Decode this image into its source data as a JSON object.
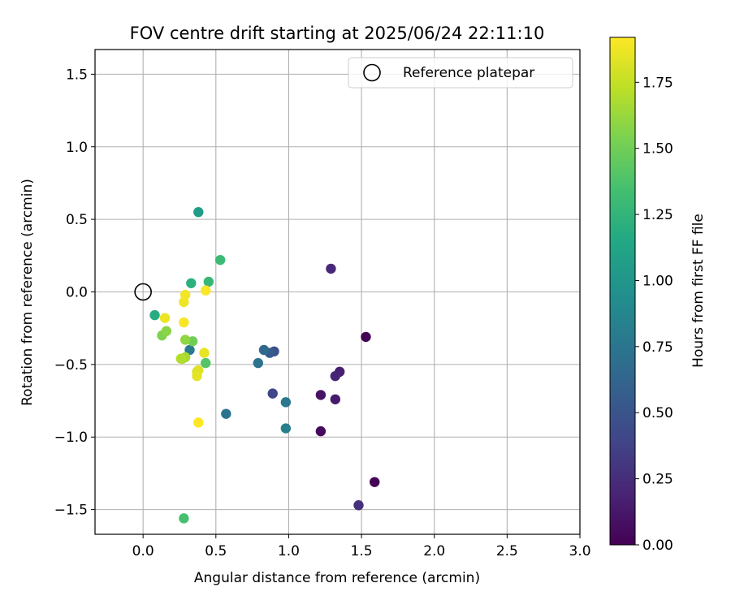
{
  "chart_data": {
    "type": "scatter",
    "title": "FOV centre drift starting at 2025/06/24 22:11:10",
    "xlabel": "Angular distance from reference (arcmin)",
    "ylabel": "Rotation from reference (arcmin)",
    "xlim": [
      -0.33,
      3.0
    ],
    "ylim": [
      -1.67,
      1.67
    ],
    "xticks": [
      0.0,
      0.5,
      1.0,
      1.5,
      2.0,
      2.5,
      3.0
    ],
    "xtick_labels": [
      "0.0",
      "0.5",
      "1.0",
      "1.5",
      "2.0",
      "2.5",
      "3.0"
    ],
    "yticks": [
      -1.5,
      -1.0,
      -0.5,
      0.0,
      0.5,
      1.0,
      1.5
    ],
    "ytick_labels": [
      "−1.5",
      "−1.0",
      "−0.5",
      "0.0",
      "0.5",
      "1.0",
      "1.5"
    ],
    "grid": true,
    "legend": {
      "placement": "top-right",
      "entries": [
        "Reference platepar"
      ]
    },
    "reference_point": {
      "x": 0.0,
      "y": 0.0
    },
    "colorbar": {
      "label": "Hours from first FF file",
      "colormap": "viridis",
      "range": [
        0.0,
        1.92
      ],
      "ticks": [
        0.0,
        0.25,
        0.5,
        0.75,
        1.0,
        1.25,
        1.5,
        1.75
      ],
      "tick_labels": [
        "0.00",
        "0.25",
        "0.50",
        "0.75",
        "1.00",
        "1.25",
        "1.50",
        "1.75"
      ]
    },
    "points": [
      {
        "x": 1.53,
        "y": -0.31,
        "c": 0.0
      },
      {
        "x": 1.59,
        "y": -1.31,
        "c": 0.02
      },
      {
        "x": 1.22,
        "y": -0.96,
        "c": 0.05
      },
      {
        "x": 1.22,
        "y": -0.71,
        "c": 0.1
      },
      {
        "x": 1.32,
        "y": -0.74,
        "c": 0.14
      },
      {
        "x": 1.35,
        "y": -0.55,
        "c": 0.17
      },
      {
        "x": 1.32,
        "y": -0.58,
        "c": 0.2
      },
      {
        "x": 1.29,
        "y": 0.16,
        "c": 0.22
      },
      {
        "x": 1.48,
        "y": -1.47,
        "c": 0.27
      },
      {
        "x": 0.89,
        "y": -0.7,
        "c": 0.4
      },
      {
        "x": 0.9,
        "y": -0.41,
        "c": 0.47
      },
      {
        "x": 0.87,
        "y": -0.42,
        "c": 0.55
      },
      {
        "x": 0.83,
        "y": -0.4,
        "c": 0.65
      },
      {
        "x": 0.79,
        "y": -0.49,
        "c": 0.72
      },
      {
        "x": 0.98,
        "y": -0.76,
        "c": 0.76
      },
      {
        "x": 0.98,
        "y": -0.94,
        "c": 0.82
      },
      {
        "x": 0.57,
        "y": -0.84,
        "c": 0.74
      },
      {
        "x": 0.32,
        "y": -0.4,
        "c": 0.8
      },
      {
        "x": 0.38,
        "y": 0.55,
        "c": 1.05
      },
      {
        "x": 0.08,
        "y": -0.16,
        "c": 1.18
      },
      {
        "x": 0.33,
        "y": 0.06,
        "c": 1.22
      },
      {
        "x": 0.45,
        "y": 0.07,
        "c": 1.28
      },
      {
        "x": 0.53,
        "y": 0.22,
        "c": 1.3
      },
      {
        "x": 0.28,
        "y": -1.56,
        "c": 1.35
      },
      {
        "x": 0.43,
        "y": -0.49,
        "c": 1.4
      },
      {
        "x": 0.34,
        "y": -0.34,
        "c": 1.5
      },
      {
        "x": 0.13,
        "y": -0.3,
        "c": 1.55
      },
      {
        "x": 0.16,
        "y": -0.27,
        "c": 1.58
      },
      {
        "x": 0.29,
        "y": -0.33,
        "c": 1.6
      },
      {
        "x": 0.27,
        "y": -0.46,
        "c": 1.62
      },
      {
        "x": 0.29,
        "y": -0.45,
        "c": 1.66
      },
      {
        "x": 0.26,
        "y": -0.46,
        "c": 1.7
      },
      {
        "x": 0.37,
        "y": -0.55,
        "c": 1.8
      },
      {
        "x": 0.38,
        "y": -0.54,
        "c": 1.82
      },
      {
        "x": 0.37,
        "y": -0.58,
        "c": 1.84
      },
      {
        "x": 0.42,
        "y": -0.42,
        "c": 1.86
      },
      {
        "x": 0.15,
        "y": -0.18,
        "c": 1.87
      },
      {
        "x": 0.28,
        "y": -0.07,
        "c": 1.88
      },
      {
        "x": 0.29,
        "y": -0.02,
        "c": 1.89
      },
      {
        "x": 0.28,
        "y": -0.21,
        "c": 1.9
      },
      {
        "x": 0.43,
        "y": 0.01,
        "c": 1.91
      },
      {
        "x": 0.38,
        "y": -0.9,
        "c": 1.92
      }
    ]
  }
}
